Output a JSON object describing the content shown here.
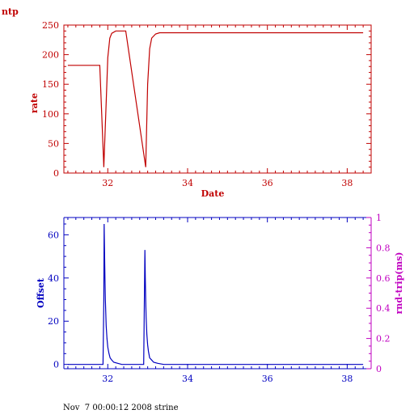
{
  "page_label": "ntp",
  "footer": "Nov  7 00:00:12 2008 strine",
  "colors": {
    "top": "#c00000",
    "bottom": "#0000c0",
    "right_axis": "#c000c0"
  },
  "chart_data": [
    {
      "type": "line",
      "xlabel": "Date",
      "ylabel": "rate",
      "xlim": [
        30.9,
        38.6
      ],
      "ylim": [
        0,
        250
      ],
      "xticks": [
        32,
        34,
        36,
        38
      ],
      "yticks": [
        0,
        50,
        100,
        150,
        200,
        250
      ],
      "series": [
        {
          "x": [
            31.0,
            31.8,
            31.9,
            31.95,
            32.0,
            32.05,
            32.1,
            32.2,
            32.3,
            32.45,
            32.95,
            33.0,
            33.05,
            33.1,
            33.2,
            33.3,
            33.5,
            38.4
          ],
          "y": [
            182,
            182,
            10,
            100,
            195,
            228,
            236,
            240,
            240,
            240,
            10,
            150,
            210,
            228,
            235,
            237,
            237,
            237
          ]
        }
      ]
    },
    {
      "type": "line",
      "ylabel": "Offset",
      "y2label": "rnd-trip(ms)",
      "xlim": [
        30.9,
        38.6
      ],
      "ylim": [
        -2,
        68
      ],
      "y2lim": [
        0,
        1
      ],
      "xticks": [
        32,
        34,
        36,
        38
      ],
      "yticks": [
        0,
        20,
        40,
        60
      ],
      "y2ticks": [
        0,
        0.2,
        0.4,
        0.6,
        0.8,
        1
      ],
      "series": [
        {
          "x": [
            31.0,
            31.88,
            31.9,
            31.91,
            31.92,
            31.93,
            31.94,
            31.96,
            31.98,
            32.0,
            32.03,
            32.06,
            32.1,
            32.15,
            32.25,
            32.35,
            32.9,
            32.93,
            32.94,
            32.95,
            32.96,
            32.98,
            33.0,
            33.02,
            33.05,
            33.1,
            33.15,
            33.25,
            33.4,
            38.4
          ],
          "y": [
            0,
            0,
            30,
            65,
            52,
            40,
            30,
            18,
            12,
            8,
            5,
            3,
            2,
            1,
            0.5,
            0,
            0,
            53,
            40,
            30,
            22,
            14,
            9,
            6,
            3,
            2,
            1,
            0.5,
            0,
            0
          ]
        }
      ]
    }
  ]
}
